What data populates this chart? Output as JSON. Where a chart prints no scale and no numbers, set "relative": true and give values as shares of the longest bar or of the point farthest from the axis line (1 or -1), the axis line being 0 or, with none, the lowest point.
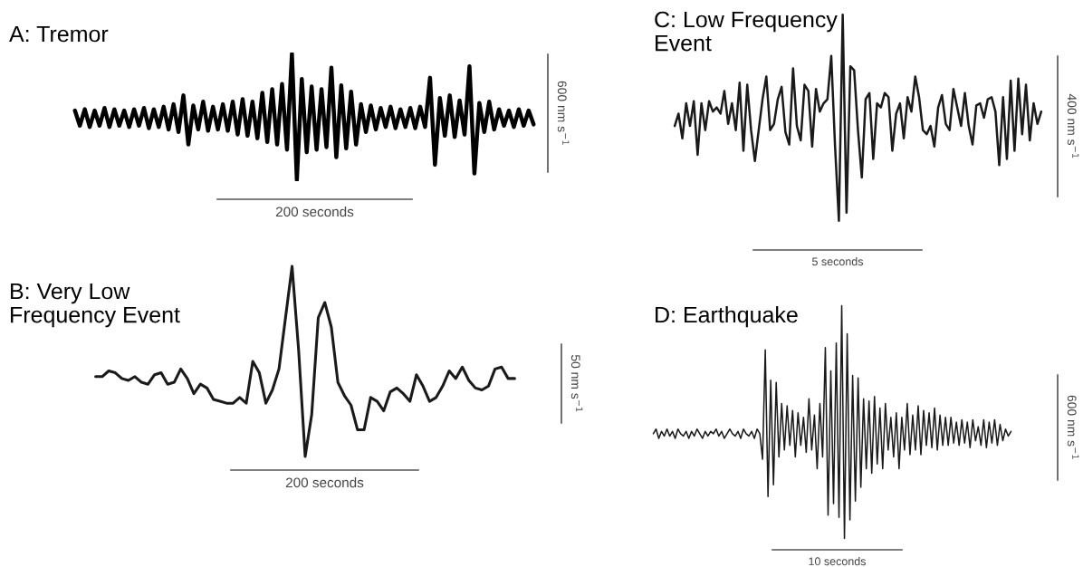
{
  "chart_data": [
    {
      "type": "line",
      "title": "A: Tremor",
      "relative": true,
      "tick_labels": false,
      "color": "#000000",
      "categories": [
        null,
        null,
        null,
        null,
        null,
        null,
        null,
        null,
        null,
        null,
        null,
        null,
        null,
        null,
        null,
        null,
        null,
        null,
        null,
        null,
        null,
        null,
        null,
        null,
        null,
        null,
        null,
        null,
        null,
        null,
        null,
        null,
        null,
        null,
        null,
        null,
        null,
        null,
        null,
        null,
        null,
        null,
        null,
        null,
        null,
        null,
        null,
        null,
        null,
        null,
        null,
        null,
        null,
        null,
        null,
        null,
        null,
        null,
        null,
        null,
        null,
        null,
        null,
        null,
        null,
        null,
        null,
        null,
        null,
        null,
        null,
        null,
        null,
        null,
        null,
        null,
        null,
        null,
        null,
        null,
        null,
        null,
        null,
        null,
        null,
        null,
        null,
        null,
        null,
        null,
        null,
        null,
        null,
        null
      ],
      "values": [
        0.55,
        0.43,
        0.56,
        0.42,
        0.55,
        0.43,
        0.57,
        0.42,
        0.56,
        0.43,
        0.55,
        0.42,
        0.56,
        0.43,
        0.57,
        0.41,
        0.56,
        0.42,
        0.58,
        0.4,
        0.6,
        0.38,
        0.67,
        0.28,
        0.59,
        0.4,
        0.62,
        0.39,
        0.58,
        0.4,
        0.6,
        0.39,
        0.62,
        0.36,
        0.64,
        0.35,
        0.62,
        0.33,
        0.69,
        0.3,
        0.72,
        0.28,
        0.76,
        0.24,
        1.0,
        0.0,
        0.8,
        0.22,
        0.74,
        0.24,
        0.72,
        0.26,
        0.89,
        0.18,
        0.75,
        0.25,
        0.7,
        0.28,
        0.6,
        0.38,
        0.59,
        0.4,
        0.57,
        0.42,
        0.58,
        0.41,
        0.56,
        0.42,
        0.57,
        0.41,
        0.58,
        0.42,
        0.81,
        0.12,
        0.65,
        0.35,
        0.67,
        0.34,
        0.63,
        0.36,
        0.9,
        0.05,
        0.61,
        0.38,
        0.62,
        0.4,
        0.56,
        0.43,
        0.55,
        0.42,
        0.56,
        0.43,
        0.55,
        0.44
      ],
      "annotations": [
        "200 seconds",
        "600 nm s$^{−1}$"
      ]
    },
    {
      "type": "line",
      "title": "C: Low Frequency\nEvent",
      "relative": true,
      "tick_labels": false,
      "color": "#1a1a1a",
      "categories": [
        null,
        null,
        null,
        null,
        null,
        null,
        null,
        null,
        null,
        null,
        null,
        null,
        null,
        null,
        null,
        null,
        null,
        null,
        null,
        null,
        null,
        null,
        null,
        null,
        null,
        null,
        null,
        null,
        null,
        null,
        null,
        null,
        null,
        null,
        null,
        null,
        null,
        null,
        null,
        null,
        null,
        null,
        null,
        null,
        null,
        null,
        null,
        null,
        null,
        null,
        null,
        null,
        null,
        null,
        null,
        null,
        null,
        null,
        null,
        null,
        null,
        null,
        null,
        null,
        null,
        null,
        null,
        null,
        null,
        null,
        null,
        null,
        null,
        null,
        null,
        null,
        null,
        null,
        null,
        null,
        null,
        null,
        null,
        null,
        null,
        null,
        null,
        null,
        null,
        null,
        null,
        null,
        null,
        null,
        null,
        null,
        null
      ],
      "values": [
        0.46,
        0.52,
        0.4,
        0.57,
        0.46,
        0.58,
        0.32,
        0.57,
        0.44,
        0.58,
        0.53,
        0.55,
        0.52,
        0.63,
        0.47,
        0.57,
        0.44,
        0.67,
        0.34,
        0.66,
        0.44,
        0.29,
        0.44,
        0.59,
        0.7,
        0.44,
        0.47,
        0.59,
        0.65,
        0.43,
        0.37,
        0.74,
        0.46,
        0.39,
        0.66,
        0.63,
        0.36,
        0.64,
        0.53,
        0.57,
        0.59,
        0.8,
        0.36,
        0.0,
        1.0,
        0.04,
        0.75,
        0.73,
        0.44,
        0.21,
        0.59,
        0.62,
        0.3,
        0.57,
        0.55,
        0.62,
        0.6,
        0.34,
        0.52,
        0.57,
        0.4,
        0.6,
        0.53,
        0.7,
        0.6,
        0.44,
        0.42,
        0.46,
        0.36,
        0.55,
        0.61,
        0.47,
        0.44,
        0.64,
        0.55,
        0.46,
        0.62,
        0.46,
        0.37,
        0.56,
        0.57,
        0.5,
        0.59,
        0.6,
        0.53,
        0.27,
        0.6,
        0.3,
        0.68,
        0.34,
        0.69,
        0.42,
        0.66,
        0.39,
        0.57,
        0.47,
        0.53
      ],
      "annotations": [
        "5 seconds",
        "400 nm s$^{−1}$"
      ]
    },
    {
      "type": "line",
      "title": "B: Very Low\nFrequency Event",
      "relative": true,
      "tick_labels": false,
      "color": "#1a1a1a",
      "categories": [
        null,
        null,
        null,
        null,
        null,
        null,
        null,
        null,
        null,
        null,
        null,
        null,
        null,
        null,
        null,
        null,
        null,
        null,
        null,
        null,
        null,
        null,
        null,
        null,
        null,
        null,
        null,
        null,
        null,
        null,
        null,
        null,
        null,
        null,
        null,
        null,
        null,
        null,
        null,
        null,
        null,
        null,
        null,
        null,
        null,
        null,
        null,
        null,
        null,
        null,
        null,
        null,
        null,
        null,
        null,
        null,
        null,
        null,
        null,
        null,
        null,
        null,
        null,
        null,
        null
      ],
      "values": [
        0.42,
        0.42,
        0.45,
        0.44,
        0.41,
        0.4,
        0.42,
        0.39,
        0.38,
        0.43,
        0.44,
        0.38,
        0.39,
        0.46,
        0.41,
        0.33,
        0.38,
        0.36,
        0.3,
        0.29,
        0.28,
        0.28,
        0.31,
        0.28,
        0.5,
        0.44,
        0.28,
        0.35,
        0.46,
        0.73,
        1.0,
        0.56,
        0.0,
        0.22,
        0.73,
        0.81,
        0.68,
        0.39,
        0.32,
        0.27,
        0.14,
        0.14,
        0.31,
        0.29,
        0.24,
        0.34,
        0.36,
        0.33,
        0.29,
        0.43,
        0.37,
        0.29,
        0.31,
        0.37,
        0.45,
        0.41,
        0.47,
        0.4,
        0.36,
        0.35,
        0.37,
        0.46,
        0.47,
        0.41,
        0.41
      ],
      "annotations": [
        "200 seconds",
        "50 nm s$^{−1}$"
      ]
    },
    {
      "type": "line",
      "title": "D: Earthquake",
      "relative": true,
      "tick_labels": false,
      "color": "#1a1a1a",
      "categories": [
        null,
        null,
        null,
        null,
        null,
        null,
        null,
        null,
        null,
        null,
        null,
        null,
        null,
        null,
        null,
        null,
        null,
        null,
        null,
        null,
        null,
        null,
        null,
        null,
        null,
        null,
        null,
        null,
        null,
        null,
        null,
        null,
        null,
        null,
        null,
        null,
        null,
        null,
        null,
        null,
        null,
        null,
        null,
        null,
        null,
        null,
        null,
        null,
        null,
        null,
        null,
        null,
        null,
        null,
        null,
        null,
        null,
        null,
        null,
        null,
        null,
        null,
        null,
        null,
        null,
        null,
        null,
        null,
        null,
        null,
        null,
        null,
        null,
        null,
        null,
        null,
        null,
        null,
        null,
        null,
        null,
        null,
        null,
        null,
        null,
        null,
        null,
        null,
        null,
        null,
        null,
        null,
        null,
        null,
        null,
        null,
        null,
        null,
        null,
        null,
        null,
        null,
        null,
        null,
        null,
        null,
        null,
        null,
        null,
        null,
        null,
        null,
        null,
        null,
        null,
        null,
        null,
        null,
        null,
        null,
        null,
        null,
        null,
        null,
        null,
        null,
        null,
        null,
        null,
        null,
        null,
        null
      ],
      "values": [
        0.45,
        0.47,
        0.43,
        0.46,
        0.44,
        0.47,
        0.44,
        0.46,
        0.43,
        0.47,
        0.45,
        0.44,
        0.46,
        0.43,
        0.46,
        0.44,
        0.47,
        0.45,
        0.43,
        0.46,
        0.44,
        0.46,
        0.45,
        0.47,
        0.44,
        0.46,
        0.43,
        0.45,
        0.47,
        0.45,
        0.44,
        0.46,
        0.43,
        0.47,
        0.45,
        0.44,
        0.46,
        0.43,
        0.47,
        0.45,
        0.34,
        0.81,
        0.18,
        0.68,
        0.23,
        0.67,
        0.35,
        0.58,
        0.38,
        0.57,
        0.4,
        0.55,
        0.35,
        0.54,
        0.4,
        0.52,
        0.37,
        0.6,
        0.38,
        0.53,
        0.3,
        0.58,
        0.35,
        0.82,
        0.1,
        0.72,
        0.15,
        0.84,
        0.09,
        1.0,
        0.0,
        0.88,
        0.08,
        0.7,
        0.16,
        0.69,
        0.22,
        0.6,
        0.3,
        0.59,
        0.28,
        0.61,
        0.32,
        0.56,
        0.3,
        0.58,
        0.38,
        0.52,
        0.35,
        0.54,
        0.3,
        0.52,
        0.38,
        0.58,
        0.36,
        0.53,
        0.38,
        0.57,
        0.36,
        0.55,
        0.4,
        0.54,
        0.39,
        0.56,
        0.38,
        0.53,
        0.4,
        0.52,
        0.4,
        0.52,
        0.41,
        0.5,
        0.4,
        0.51,
        0.41,
        0.5,
        0.39,
        0.51,
        0.42,
        0.48,
        0.4,
        0.51,
        0.39,
        0.5,
        0.41,
        0.51,
        0.4,
        0.49,
        0.42,
        0.47,
        0.44,
        0.46
      ],
      "annotations": [
        "10 seconds",
        "600 nm s$^{−1}$"
      ]
    }
  ]
}
